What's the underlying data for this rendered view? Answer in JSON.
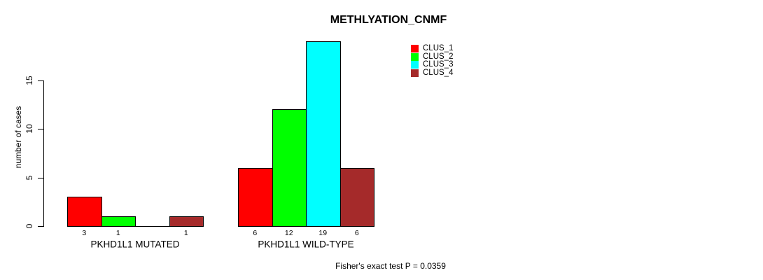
{
  "title": "METHLYATION_CNMF",
  "footer": "Fisher's exact test P = 0.0359",
  "chart_data": {
    "type": "bar",
    "title": "METHLYATION_CNMF",
    "xlabel": "",
    "ylabel": "number of cases",
    "categories": [
      "PKHD1L1 MUTATED",
      "PKHD1L1 WILD-TYPE"
    ],
    "series": [
      {
        "name": "CLUS_1",
        "color": "#FF0000",
        "values": [
          3,
          6
        ]
      },
      {
        "name": "CLUS_2",
        "color": "#00FF00",
        "values": [
          1,
          12
        ]
      },
      {
        "name": "CLUS_3",
        "color": "#00FFFF",
        "values": [
          0,
          19
        ]
      },
      {
        "name": "CLUS_4",
        "color": "#A52A2A",
        "values": [
          1,
          6
        ]
      }
    ],
    "grouped": true,
    "bar_border_color": "#000000",
    "value_labels_under_bars": true,
    "hide_zero_value_labels": true,
    "yticks": [
      0,
      5,
      10,
      15
    ],
    "ylim": [
      0,
      19
    ],
    "grid": false,
    "background": "#FFFFFF",
    "legend": {
      "position": "top-right",
      "entries": [
        "CLUS_1",
        "CLUS_2",
        "CLUS_3",
        "CLUS_4"
      ]
    },
    "annotation": "Fisher's exact test P = 0.0359"
  }
}
